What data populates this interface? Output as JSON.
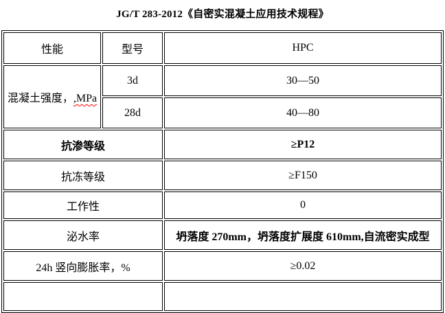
{
  "title": "JG/T 283-2012《自密实混凝土应用技术规程》",
  "table": {
    "header": {
      "performance": "性能",
      "type": "型号",
      "model": "HPC"
    },
    "strength": {
      "label_prefix": "混凝土强度，",
      "label_unit": ",MPa",
      "rows": [
        {
          "age": "3d",
          "value": "30—50"
        },
        {
          "age": "28d",
          "value": "40—80"
        }
      ]
    },
    "rows": [
      {
        "label": "抗渗等级",
        "value": "≥P12"
      },
      {
        "label": "抗冻等级",
        "value": "≥F150"
      },
      {
        "label": "工作性",
        "value": "0"
      },
      {
        "label": "泌水率",
        "value": "坍落度 270mm，坍落度扩展度 610mm,自流密实成型"
      },
      {
        "label": "24h 竖向膨胀率，%",
        "value": "≥0.02"
      }
    ]
  },
  "colors": {
    "text": "#000000",
    "border": "#000000",
    "background": "#ffffff",
    "spellcheck_underline": "#ff0000"
  }
}
